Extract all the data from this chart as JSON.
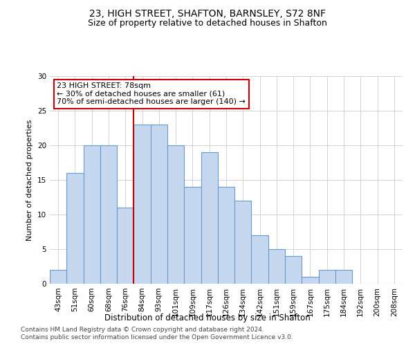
{
  "title1": "23, HIGH STREET, SHAFTON, BARNSLEY, S72 8NF",
  "title2": "Size of property relative to detached houses in Shafton",
  "xlabel": "Distribution of detached houses by size in Shafton",
  "ylabel": "Number of detached properties",
  "categories": [
    "43sqm",
    "51sqm",
    "60sqm",
    "68sqm",
    "76sqm",
    "84sqm",
    "93sqm",
    "101sqm",
    "109sqm",
    "117sqm",
    "126sqm",
    "134sqm",
    "142sqm",
    "151sqm",
    "159sqm",
    "167sqm",
    "175sqm",
    "184sqm",
    "192sqm",
    "200sqm",
    "208sqm"
  ],
  "values": [
    2,
    16,
    20,
    20,
    11,
    23,
    23,
    20,
    14,
    19,
    14,
    12,
    7,
    5,
    4,
    1,
    2,
    2,
    0,
    0,
    0
  ],
  "bar_color": "#c5d8f0",
  "bar_edge_color": "#6699cc",
  "ref_line_x": 4.5,
  "annotation_title": "23 HIGH STREET: 78sqm",
  "annotation_line1": "← 30% of detached houses are smaller (61)",
  "annotation_line2": "70% of semi-detached houses are larger (140) →",
  "annotation_box_color": "#ffffff",
  "annotation_box_edge": "#cc0000",
  "ref_line_color": "#cc0000",
  "ylim": [
    0,
    30
  ],
  "yticks": [
    0,
    5,
    10,
    15,
    20,
    25,
    30
  ],
  "footer1": "Contains HM Land Registry data © Crown copyright and database right 2024.",
  "footer2": "Contains public sector information licensed under the Open Government Licence v3.0.",
  "title1_fontsize": 10,
  "title2_fontsize": 9,
  "xlabel_fontsize": 8.5,
  "ylabel_fontsize": 8,
  "tick_fontsize": 7.5,
  "footer_fontsize": 6.5,
  "annotation_fontsize": 8
}
